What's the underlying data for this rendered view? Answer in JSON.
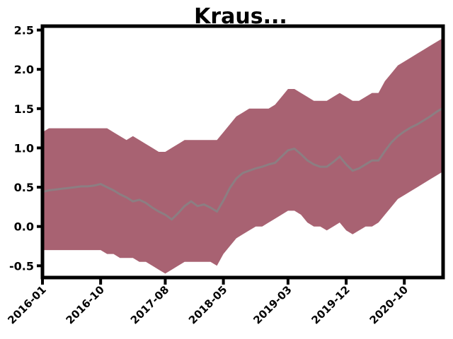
{
  "chart_data": {
    "type": "area",
    "title": "Kraus...",
    "xlabel": "",
    "ylabel": "",
    "x": [
      0,
      1,
      2,
      3,
      4,
      5,
      6,
      7,
      8,
      9,
      10,
      11,
      12,
      13,
      14,
      15,
      16,
      17,
      18,
      19,
      20,
      21,
      22,
      23,
      24,
      25,
      26,
      27,
      28,
      29,
      30,
      31,
      32,
      33,
      34,
      35,
      36,
      37,
      38,
      39,
      40,
      41,
      42,
      43,
      44,
      45,
      46,
      47,
      48,
      49,
      50,
      51,
      52,
      53,
      54,
      55,
      56,
      57,
      58,
      59,
      60,
      61,
      62
    ],
    "series": [
      {
        "values": [
          0.44,
          0.46,
          0.47,
          0.48,
          0.49,
          0.5,
          0.51,
          0.51,
          0.52,
          0.54,
          0.5,
          0.46,
          0.41,
          0.37,
          0.32,
          0.34,
          0.3,
          0.24,
          0.19,
          0.15,
          0.09,
          0.17,
          0.26,
          0.32,
          0.26,
          0.28,
          0.24,
          0.19,
          0.33,
          0.49,
          0.61,
          0.68,
          0.71,
          0.74,
          0.76,
          0.79,
          0.81,
          0.89,
          0.97,
          0.99,
          0.92,
          0.84,
          0.79,
          0.76,
          0.76,
          0.82,
          0.89,
          0.79,
          0.71,
          0.74,
          0.79,
          0.84,
          0.84,
          0.96,
          1.07,
          1.15,
          1.21,
          1.26,
          1.3,
          1.35,
          1.4,
          1.46,
          1.51
        ],
        "upper": [
          1.2,
          1.25,
          1.25,
          1.25,
          1.25,
          1.25,
          1.25,
          1.25,
          1.25,
          1.25,
          1.25,
          1.2,
          1.15,
          1.1,
          1.15,
          1.1,
          1.05,
          1.0,
          0.95,
          0.95,
          1.0,
          1.05,
          1.1,
          1.1,
          1.1,
          1.1,
          1.1,
          1.1,
          1.2,
          1.3,
          1.4,
          1.45,
          1.5,
          1.5,
          1.5,
          1.5,
          1.55,
          1.65,
          1.75,
          1.75,
          1.7,
          1.65,
          1.6,
          1.6,
          1.6,
          1.65,
          1.7,
          1.65,
          1.6,
          1.6,
          1.65,
          1.7,
          1.7,
          1.85,
          1.95,
          2.05,
          2.1,
          2.15,
          2.2,
          2.25,
          2.3,
          2.35,
          2.4
        ],
        "lower": [
          -0.3,
          -0.3,
          -0.3,
          -0.3,
          -0.3,
          -0.3,
          -0.3,
          -0.3,
          -0.3,
          -0.3,
          -0.35,
          -0.35,
          -0.4,
          -0.4,
          -0.4,
          -0.45,
          -0.45,
          -0.5,
          -0.55,
          -0.6,
          -0.55,
          -0.5,
          -0.45,
          -0.45,
          -0.45,
          -0.45,
          -0.45,
          -0.5,
          -0.35,
          -0.25,
          -0.15,
          -0.1,
          -0.05,
          0.0,
          0.0,
          0.05,
          0.1,
          0.15,
          0.2,
          0.2,
          0.15,
          0.05,
          0.0,
          0.0,
          -0.05,
          0.0,
          0.05,
          -0.05,
          -0.1,
          -0.05,
          0.0,
          0.0,
          0.05,
          0.15,
          0.25,
          0.35,
          0.4,
          0.45,
          0.5,
          0.55,
          0.6,
          0.65,
          0.7
        ]
      }
    ],
    "ylim": [
      -0.65,
      2.55
    ],
    "xlim": [
      0,
      62
    ],
    "yticks": [
      -0.5,
      0.0,
      0.5,
      1.0,
      1.5,
      2.0,
      2.5
    ],
    "ytick_labels": [
      "-0.5",
      "0.0",
      "0.5",
      "1.0",
      "1.5",
      "2.0",
      "2.5"
    ],
    "xticks": [
      0,
      9,
      19,
      28,
      38,
      47,
      56
    ],
    "xtick_labels": [
      "2016-01",
      "2016-10",
      "2017-08",
      "2018-05",
      "2019-03",
      "2019-12",
      "2020-10"
    ],
    "grid": false,
    "colors": {
      "band": "#a86272",
      "line": "#8c7e82",
      "axes": "#000000"
    }
  }
}
